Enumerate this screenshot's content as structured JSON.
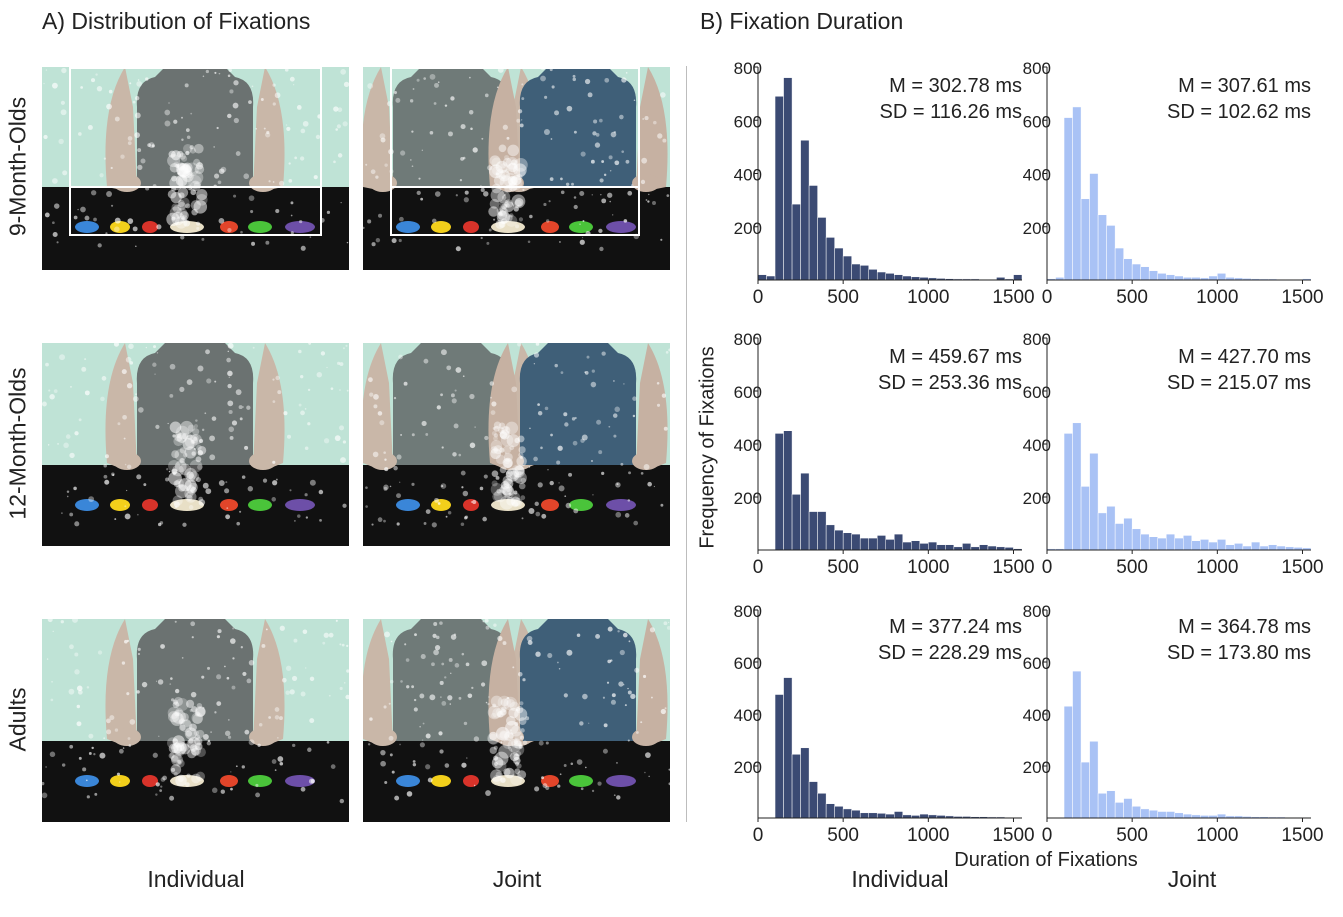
{
  "panel_a": {
    "title": "A) Distribution of Fixations",
    "rows": [
      "9-Month-Olds",
      "12-Month-Olds",
      "Adults"
    ],
    "columns": [
      "Individual",
      "Joint"
    ]
  },
  "panel_b": {
    "title": "B) Fixation Duration",
    "columns": [
      "Individual",
      "Joint"
    ],
    "ylabel": "Frequency of Fixations",
    "xlabel": "Duration of Fixations"
  },
  "colors": {
    "individual_bar": "#3b4a73",
    "joint_bar": "#a9c2f5",
    "background_wall": "#bfe3d6",
    "table": "#111111"
  },
  "chart_data": [
    {
      "type": "bar",
      "group": "9-Month-Olds",
      "condition": "Individual",
      "stats": [
        "M = 302.78 ms",
        "SD = 116.26 ms"
      ],
      "bin_width": 50,
      "xlim": [
        0,
        1550
      ],
      "ylim": [
        0,
        800
      ],
      "xticks": [
        0,
        500,
        1000,
        1500
      ],
      "yticks": [
        200,
        400,
        600,
        800
      ],
      "x": [
        0,
        50,
        100,
        150,
        200,
        250,
        300,
        350,
        400,
        450,
        500,
        550,
        600,
        650,
        700,
        750,
        800,
        850,
        900,
        950,
        1000,
        1050,
        1100,
        1150,
        1200,
        1250,
        1300,
        1350,
        1400,
        1450,
        1500
      ],
      "values": [
        20,
        15,
        690,
        760,
        285,
        525,
        355,
        235,
        160,
        120,
        90,
        60,
        55,
        40,
        30,
        25,
        20,
        15,
        12,
        10,
        8,
        6,
        5,
        4,
        4,
        4,
        3,
        3,
        10,
        4,
        20
      ]
    },
    {
      "type": "bar",
      "group": "9-Month-Olds",
      "condition": "Joint",
      "stats": [
        "M = 307.61 ms",
        "SD = 102.62 ms"
      ],
      "bin_width": 50,
      "xlim": [
        0,
        1550
      ],
      "ylim": [
        0,
        800
      ],
      "xticks": [
        0,
        500,
        1000,
        1500
      ],
      "yticks": [
        200,
        400,
        600,
        800
      ],
      "x": [
        0,
        50,
        100,
        150,
        200,
        250,
        300,
        350,
        400,
        450,
        500,
        550,
        600,
        650,
        700,
        750,
        800,
        850,
        900,
        950,
        1000,
        1050,
        1100,
        1150,
        1200,
        1250,
        1300,
        1350,
        1400,
        1450,
        1500
      ],
      "values": [
        5,
        10,
        610,
        650,
        305,
        400,
        245,
        205,
        120,
        80,
        60,
        50,
        35,
        25,
        20,
        15,
        10,
        10,
        8,
        15,
        25,
        10,
        8,
        6,
        5,
        4,
        4,
        3,
        3,
        3,
        5
      ]
    },
    {
      "type": "bar",
      "group": "12-Month-Olds",
      "condition": "Individual",
      "stats": [
        "M = 459.67 ms",
        "SD = 253.36 ms"
      ],
      "bin_width": 50,
      "xlim": [
        0,
        1550
      ],
      "ylim": [
        0,
        800
      ],
      "xticks": [
        0,
        500,
        1000,
        1500
      ],
      "yticks": [
        200,
        400,
        600,
        800
      ],
      "x": [
        0,
        50,
        100,
        150,
        200,
        250,
        300,
        350,
        400,
        450,
        500,
        550,
        600,
        650,
        700,
        750,
        800,
        850,
        900,
        950,
        1000,
        1050,
        1100,
        1150,
        1200,
        1250,
        1300,
        1350,
        1400,
        1450,
        1500
      ],
      "values": [
        0,
        0,
        440,
        450,
        210,
        290,
        145,
        145,
        95,
        75,
        65,
        60,
        45,
        45,
        55,
        40,
        60,
        30,
        35,
        25,
        30,
        20,
        20,
        12,
        25,
        12,
        20,
        15,
        12,
        10,
        5
      ]
    },
    {
      "type": "bar",
      "group": "12-Month-Olds",
      "condition": "Joint",
      "stats": [
        "M = 427.70 ms",
        "SD = 215.07 ms"
      ],
      "bin_width": 50,
      "xlim": [
        0,
        1550
      ],
      "ylim": [
        0,
        800
      ],
      "xticks": [
        0,
        500,
        1000,
        1500
      ],
      "yticks": [
        200,
        400,
        600,
        800
      ],
      "x": [
        0,
        50,
        100,
        150,
        200,
        250,
        300,
        350,
        400,
        450,
        500,
        550,
        600,
        650,
        700,
        750,
        800,
        850,
        900,
        950,
        1000,
        1050,
        1100,
        1150,
        1200,
        1250,
        1300,
        1350,
        1400,
        1450,
        1500
      ],
      "values": [
        5,
        5,
        440,
        480,
        240,
        365,
        140,
        165,
        100,
        120,
        80,
        60,
        50,
        45,
        60,
        45,
        55,
        35,
        40,
        30,
        40,
        20,
        25,
        15,
        30,
        15,
        20,
        15,
        12,
        10,
        8
      ]
    },
    {
      "type": "bar",
      "group": "Adults",
      "condition": "Individual",
      "stats": [
        "M = 377.24 ms",
        "SD = 228.29 ms"
      ],
      "bin_width": 50,
      "xlim": [
        0,
        1550
      ],
      "ylim": [
        0,
        800
      ],
      "xticks": [
        0,
        500,
        1000,
        1500
      ],
      "yticks": [
        200,
        400,
        600,
        800
      ],
      "x": [
        0,
        50,
        100,
        150,
        200,
        250,
        300,
        350,
        400,
        450,
        500,
        550,
        600,
        650,
        700,
        750,
        800,
        850,
        900,
        950,
        1000,
        1050,
        1100,
        1150,
        1200,
        1250,
        1300,
        1350,
        1400,
        1450,
        1500
      ],
      "values": [
        0,
        0,
        475,
        540,
        245,
        270,
        140,
        95,
        55,
        45,
        35,
        30,
        20,
        20,
        18,
        15,
        25,
        12,
        10,
        15,
        12,
        10,
        8,
        6,
        6,
        5,
        5,
        4,
        4,
        3,
        3
      ]
    },
    {
      "type": "bar",
      "group": "Adults",
      "condition": "Joint",
      "stats": [
        "M = 364.78 ms",
        "SD = 173.80 ms"
      ],
      "bin_width": 50,
      "xlim": [
        0,
        1550
      ],
      "ylim": [
        0,
        800
      ],
      "xticks": [
        0,
        500,
        1000,
        1500
      ],
      "yticks": [
        200,
        400,
        600,
        800
      ],
      "x": [
        0,
        50,
        100,
        150,
        200,
        250,
        300,
        350,
        400,
        450,
        500,
        550,
        600,
        650,
        700,
        750,
        800,
        850,
        900,
        950,
        1000,
        1050,
        1100,
        1150,
        1200,
        1250,
        1300,
        1350,
        1400,
        1450,
        1500
      ],
      "values": [
        0,
        0,
        430,
        565,
        215,
        295,
        95,
        105,
        60,
        75,
        45,
        35,
        30,
        25,
        25,
        20,
        15,
        12,
        10,
        10,
        15,
        8,
        8,
        6,
        5,
        5,
        4,
        4,
        3,
        3,
        3
      ]
    }
  ]
}
